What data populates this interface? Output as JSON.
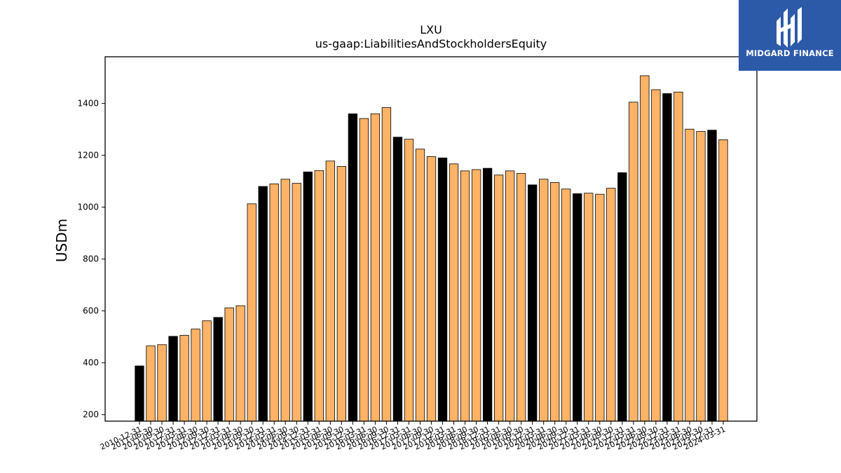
{
  "chart_data": {
    "type": "bar",
    "title": "LXU",
    "subtitle": "us-gaap:LiabilitiesAndStockholdersEquity",
    "xlabel": "",
    "ylabel": "USDm",
    "ylim": [
      175,
      1580
    ],
    "yticks": [
      200,
      400,
      600,
      800,
      1000,
      1200,
      1400
    ],
    "colors": {
      "annual": "#000000",
      "quarterly": "#ffb366",
      "edge": "#000000"
    },
    "categories": [
      "2010-12-31",
      "2011-06-30",
      "2011-09-30",
      "2011-12-31",
      "2012-03-31",
      "2012-06-30",
      "2012-09-30",
      "2012-12-31",
      "2013-03-31",
      "2013-06-30",
      "2013-09-30",
      "2013-12-31",
      "2014-03-31",
      "2014-06-30",
      "2014-09-30",
      "2014-12-31",
      "2015-03-31",
      "2015-06-30",
      "2015-09-30",
      "2015-12-31",
      "2016-03-31",
      "2016-06-30",
      "2016-09-30",
      "2016-12-31",
      "2017-03-31",
      "2017-06-30",
      "2017-09-30",
      "2017-12-31",
      "2018-03-31",
      "2018-06-30",
      "2018-09-30",
      "2018-12-31",
      "2019-03-31",
      "2019-06-30",
      "2019-09-30",
      "2019-12-31",
      "2020-03-31",
      "2020-06-30",
      "2020-09-30",
      "2020-12-31",
      "2021-03-31",
      "2021-06-30",
      "2021-09-30",
      "2021-12-31",
      "2022-03-31",
      "2022-06-30",
      "2022-09-30",
      "2022-12-31",
      "2023-03-31",
      "2023-06-30",
      "2023-09-30",
      "2023-12-31",
      "2024-03-31"
    ],
    "values": [
      388,
      465,
      470,
      502,
      506,
      530,
      562,
      575,
      612,
      620,
      1013,
      1080,
      1090,
      1108,
      1092,
      1136,
      1141,
      1178,
      1157,
      1360,
      1342,
      1360,
      1384,
      1270,
      1262,
      1224,
      1195,
      1190,
      1167,
      1140,
      1145,
      1150,
      1124,
      1140,
      1130,
      1086,
      1108,
      1095,
      1070,
      1052,
      1054,
      1050,
      1073,
      1133,
      1405,
      1507,
      1453,
      1438,
      1444,
      1301,
      1292,
      1297,
      1260
    ],
    "annual": [
      true,
      false,
      false,
      true,
      false,
      false,
      false,
      true,
      false,
      false,
      false,
      true,
      false,
      false,
      false,
      true,
      false,
      false,
      false,
      true,
      false,
      false,
      false,
      true,
      false,
      false,
      false,
      true,
      false,
      false,
      false,
      true,
      false,
      false,
      false,
      true,
      false,
      false,
      false,
      true,
      false,
      false,
      false,
      true,
      false,
      false,
      false,
      true,
      false,
      false,
      false,
      true,
      false
    ]
  },
  "logo": {
    "text": "MIDGARD FINANCE",
    "icon": "midgard-logo-icon",
    "background": "#2c5aa9"
  }
}
